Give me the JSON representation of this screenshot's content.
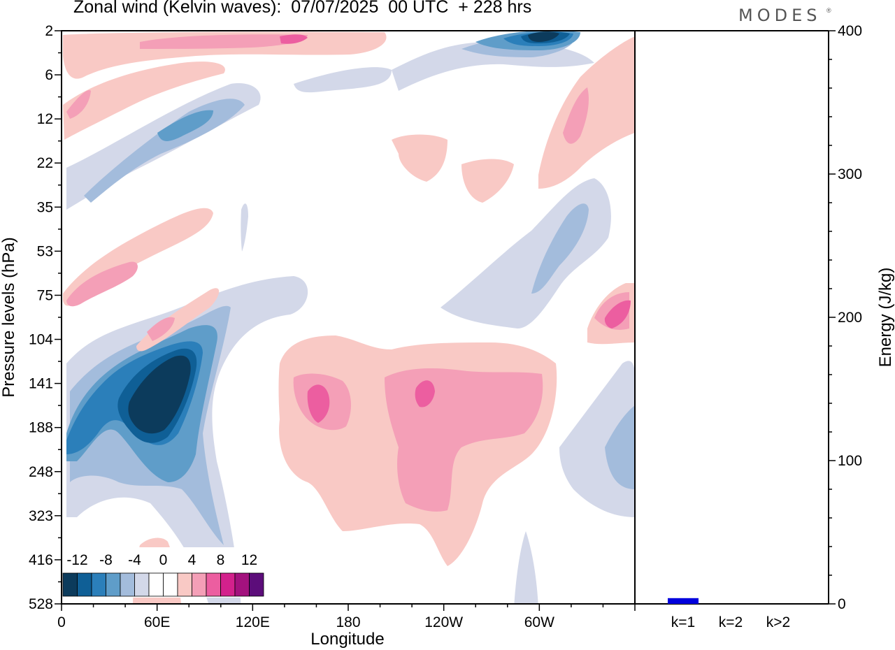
{
  "header": {
    "title": "Zonal wind (Kelvin waves):  07/07/2025  00 UTC  + 228 hrs",
    "brand": "MODES",
    "brand_mark": "®"
  },
  "chart_data": [
    {
      "type": "heatmap",
      "title": "Zonal wind (Kelvin waves):  07/07/2025  00 UTC  + 228 hrs",
      "xlabel": "Longitude",
      "ylabel": "Pressure levels (hPa)",
      "x_tick_labels": [
        "0",
        "60E",
        "120E",
        "180",
        "120W",
        "60W"
      ],
      "y_tick_labels": [
        "2",
        "6",
        "12",
        "22",
        "35",
        "53",
        "75",
        "104",
        "141",
        "188",
        "248",
        "323",
        "416",
        "528"
      ],
      "colorbar": {
        "labels": [
          "-12",
          "-8",
          "-4",
          "0",
          "4",
          "8",
          "12"
        ],
        "levels": [
          -14,
          -12,
          -10,
          -8,
          -6,
          -4,
          -2,
          2,
          4,
          6,
          8,
          10,
          12,
          14
        ],
        "colors": [
          "#0c3b5c",
          "#0f5f96",
          "#2b7fba",
          "#5f9dc9",
          "#a3bcdc",
          "#d3d8e9",
          "#ffffff",
          "#ffffff",
          "#f9c9c5",
          "#f49fb7",
          "#ec5ea0",
          "#d3218c",
          "#a3127e",
          "#5c0d7a"
        ]
      },
      "grid": false,
      "features": [
        {
          "sign": "negative",
          "level": -14,
          "lon": 70,
          "lev": 141,
          "note": "strongest easterly core"
        },
        {
          "sign": "negative",
          "level": -12,
          "lon": 280,
          "lev": 2
        },
        {
          "sign": "positive",
          "level": 8,
          "lon": 155,
          "lev": 141
        },
        {
          "sign": "positive",
          "level": 8,
          "lon": 220,
          "lev": 141
        },
        {
          "sign": "positive",
          "level": 8,
          "lon": 350,
          "lev": 90
        }
      ]
    },
    {
      "type": "bar",
      "categories": [
        "k=1",
        "k=2",
        "k>2"
      ],
      "values": [
        4,
        0.5,
        0.5
      ],
      "ylabel": "Energy (J/kg)",
      "ylim": [
        0,
        400
      ],
      "y_tick_labels": [
        "0",
        "100",
        "200",
        "300",
        "400"
      ],
      "bar_color": "#0000dd"
    }
  ]
}
